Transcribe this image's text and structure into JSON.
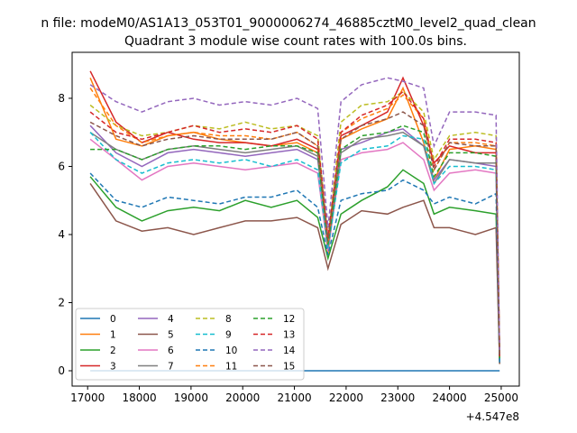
{
  "chart_data": {
    "type": "line",
    "suptitle": "n file: modeM0/AS1A13_053T01_9000006274_46885cztM0_level2_quad_clean",
    "title": "Quadrant 3 module wise count rates with 100.0s bins.",
    "xlabel": "",
    "ylabel": "",
    "x_offset_label": "+4.547e8",
    "xlim": [
      16700,
      25350
    ],
    "ylim": [
      -0.45,
      9.35
    ],
    "x_ticks": [
      17000,
      18000,
      19000,
      20000,
      21000,
      22000,
      23000,
      24000,
      25000
    ],
    "y_ticks": [
      0,
      2,
      4,
      6,
      8
    ],
    "x": [
      17050,
      17550,
      18050,
      18550,
      19050,
      19550,
      20050,
      20550,
      21050,
      21450,
      21650,
      21900,
      22300,
      22800,
      23100,
      23500,
      23700,
      24000,
      24500,
      24900,
      24970
    ],
    "legend_position": "lower left",
    "series": [
      {
        "name": "0",
        "color": "#1f77b4",
        "dash": "solid",
        "values": [
          0,
          0,
          0,
          0,
          0,
          0,
          0,
          0,
          0,
          0,
          0,
          0,
          0,
          0,
          0,
          0,
          0,
          0,
          0,
          0,
          0
        ]
      },
      {
        "name": "1",
        "color": "#ff7f0e",
        "dash": "solid",
        "values": [
          8.6,
          6.8,
          6.6,
          6.9,
          7.0,
          6.8,
          6.7,
          6.6,
          6.7,
          6.4,
          3.4,
          6.8,
          7.1,
          7.4,
          8.3,
          6.7,
          5.6,
          6.5,
          6.6,
          6.5,
          0.4
        ]
      },
      {
        "name": "2",
        "color": "#2ca02c",
        "dash": "solid",
        "values": [
          5.7,
          4.8,
          4.4,
          4.7,
          4.8,
          4.7,
          5.0,
          4.8,
          5.0,
          4.5,
          3.3,
          4.6,
          5.0,
          5.4,
          5.9,
          5.5,
          4.6,
          4.8,
          4.7,
          4.6,
          0.2
        ]
      },
      {
        "name": "3",
        "color": "#d62728",
        "dash": "solid",
        "values": [
          8.8,
          7.3,
          6.7,
          7.0,
          6.8,
          6.7,
          6.7,
          6.6,
          6.8,
          6.5,
          3.8,
          6.9,
          7.2,
          7.6,
          8.6,
          7.2,
          6.1,
          6.6,
          6.4,
          6.4,
          0.4
        ]
      },
      {
        "name": "4",
        "color": "#9467bd",
        "dash": "solid",
        "values": [
          7.2,
          6.4,
          6.0,
          6.4,
          6.5,
          6.4,
          6.3,
          6.4,
          6.5,
          6.2,
          3.8,
          6.5,
          6.7,
          7.0,
          7.1,
          6.6,
          5.6,
          6.2,
          6.1,
          6.0,
          0.3
        ]
      },
      {
        "name": "5",
        "color": "#8c564b",
        "dash": "solid",
        "values": [
          5.5,
          4.4,
          4.1,
          4.2,
          4.0,
          4.2,
          4.4,
          4.4,
          4.5,
          4.2,
          3.0,
          4.3,
          4.7,
          4.6,
          4.8,
          5.0,
          4.2,
          4.2,
          4.0,
          4.2,
          0.2
        ]
      },
      {
        "name": "6",
        "color": "#e377c2",
        "dash": "solid",
        "values": [
          6.8,
          6.2,
          5.6,
          6.0,
          6.1,
          6.0,
          5.9,
          6.0,
          6.1,
          5.8,
          3.5,
          6.2,
          6.4,
          6.5,
          6.7,
          6.2,
          5.3,
          5.8,
          5.9,
          5.8,
          0.3
        ]
      },
      {
        "name": "7",
        "color": "#7f7f7f",
        "dash": "solid",
        "values": [
          7.0,
          6.5,
          6.2,
          6.5,
          6.6,
          6.5,
          6.4,
          6.5,
          6.6,
          6.3,
          3.6,
          6.4,
          6.8,
          6.9,
          7.0,
          6.6,
          5.5,
          6.2,
          6.1,
          6.1,
          0.3
        ]
      },
      {
        "name": "8",
        "color": "#bcbd22",
        "dash": "dashed",
        "values": [
          7.8,
          7.2,
          6.9,
          7.0,
          7.2,
          7.1,
          7.3,
          7.1,
          7.2,
          6.9,
          3.9,
          7.3,
          7.8,
          7.9,
          8.2,
          7.6,
          6.2,
          6.9,
          7.0,
          6.9,
          0.4
        ]
      },
      {
        "name": "9",
        "color": "#17becf",
        "dash": "dashed",
        "values": [
          7.0,
          6.2,
          5.8,
          6.1,
          6.2,
          6.1,
          6.2,
          6.0,
          6.2,
          5.9,
          3.6,
          6.1,
          6.5,
          6.6,
          6.9,
          6.8,
          5.5,
          6.0,
          6.0,
          5.9,
          0.3
        ]
      },
      {
        "name": "10",
        "color": "#1f77b4",
        "dash": "dashed",
        "values": [
          5.8,
          5.0,
          4.8,
          5.1,
          5.0,
          4.9,
          5.1,
          5.1,
          5.3,
          4.8,
          3.4,
          5.0,
          5.2,
          5.3,
          5.6,
          5.3,
          4.9,
          5.1,
          4.9,
          5.2,
          0.2
        ]
      },
      {
        "name": "11",
        "color": "#ff7f0e",
        "dash": "dashed",
        "values": [
          8.3,
          7.2,
          6.7,
          6.9,
          7.0,
          6.9,
          6.9,
          6.8,
          7.0,
          6.6,
          3.7,
          7.0,
          7.4,
          7.7,
          8.1,
          7.4,
          5.9,
          6.7,
          6.7,
          6.6,
          0.4
        ]
      },
      {
        "name": "12",
        "color": "#2ca02c",
        "dash": "dashed",
        "values": [
          6.5,
          6.5,
          6.2,
          6.5,
          6.6,
          6.6,
          6.5,
          6.6,
          6.6,
          6.4,
          3.7,
          6.5,
          6.9,
          7.0,
          7.2,
          7.0,
          5.7,
          6.4,
          6.4,
          6.3,
          0.3
        ]
      },
      {
        "name": "13",
        "color": "#d62728",
        "dash": "dashed",
        "values": [
          7.6,
          7.0,
          6.8,
          7.0,
          7.2,
          7.0,
          7.1,
          7.0,
          7.2,
          6.8,
          3.9,
          7.0,
          7.5,
          7.8,
          8.2,
          7.4,
          6.0,
          6.8,
          6.8,
          6.7,
          0.4
        ]
      },
      {
        "name": "14",
        "color": "#9467bd",
        "dash": "dashed",
        "values": [
          8.4,
          7.9,
          7.6,
          7.9,
          8.0,
          7.8,
          7.9,
          7.8,
          8.0,
          7.7,
          4.2,
          7.9,
          8.4,
          8.6,
          8.5,
          8.3,
          6.6,
          7.6,
          7.6,
          7.5,
          0.5
        ]
      },
      {
        "name": "15",
        "color": "#8c564b",
        "dash": "dashed",
        "values": [
          7.3,
          6.9,
          6.6,
          6.8,
          6.9,
          6.8,
          6.8,
          6.8,
          7.0,
          6.6,
          3.8,
          6.8,
          7.2,
          7.4,
          7.6,
          7.2,
          5.9,
          6.7,
          6.6,
          6.6,
          0.4
        ]
      }
    ]
  }
}
